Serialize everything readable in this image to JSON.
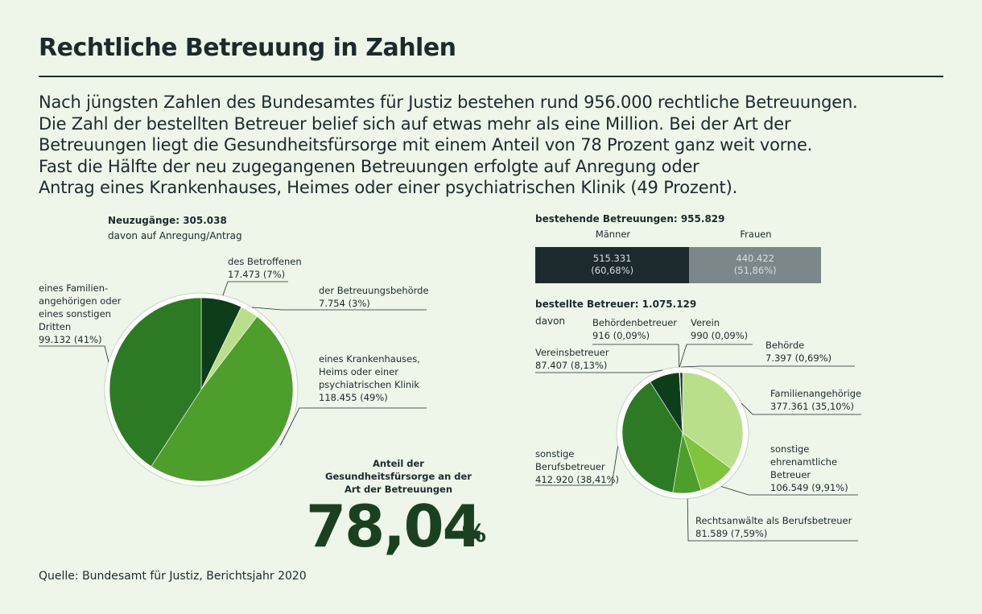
{
  "title": "Rechtliche Betreuung in Zahlen",
  "intro_lines": [
    "Nach jüngsten Zahlen des Bundesamtes für Justiz bestehen rund 956.000 rechtliche Betreuungen.",
    "Die Zahl der bestellten Betreuer belief sich auf etwas mehr als eine Million. Bei der Art der",
    "Betreuungen liegt die Gesundheitsfürsorge mit einem Anteil von 78 Prozent ganz weit vorne.",
    "Fast die Hälfte der neu zugegangenen Betreuungen erfolgte auf Anregung oder",
    "Antrag eines Krankenhauses, Heimes oder einer psychiatrischen Klinik (49 Prozent)."
  ],
  "highlight": {
    "label_lines": [
      "Anteil der",
      "Gesundheitsfürsorge an der",
      "Art der Betreuungen"
    ],
    "value": "78,04",
    "unit": "%"
  },
  "source": "Quelle: Bundesamt für Justiz, Berichtsjahr 2020",
  "colors": {
    "background": "#edf6e8",
    "text": "#1c2a2e",
    "darkest_green": "#0e3d1a",
    "dark_green": "#2d7a24",
    "mid_green": "#4e9e2c",
    "bright_green": "#7fc43c",
    "light_green": "#b9df8a",
    "bar_dark": "#1c2a2e",
    "bar_gray": "#7c8789"
  },
  "chart_data": [
    {
      "type": "pie",
      "title": "Neuzugänge: 305.038",
      "subtitle": "davon auf Anregung/Antrag",
      "slices": [
        {
          "label": "des Betroffenen",
          "value": 17473,
          "value_text": "17.473 (7%)",
          "color": "#0e3d1a"
        },
        {
          "label": "der Betreuungsbehörde",
          "value": 7754,
          "value_text": "7.754 (3%)",
          "color": "#b9df8a"
        },
        {
          "label": "eines Krankenhauses, Heims oder einer psychiatrischen Klinik",
          "value": 118455,
          "value_text": "118.455 (49%)",
          "color": "#4e9e2c"
        },
        {
          "label": "eines Familien- angehörigen oder eines sonstigen Dritten",
          "value": 99132,
          "value_text": "99.132 (41%)",
          "color": "#2d7a24"
        }
      ]
    },
    {
      "type": "bar",
      "title": "bestehende Betreuungen: 955.829",
      "categories": [
        "Männer",
        "Frauen"
      ],
      "values": [
        515331,
        440422
      ],
      "value_texts": [
        "515.331",
        "440.422"
      ],
      "percent_texts": [
        "(60,68%)",
        "(51,86%)"
      ],
      "colors": [
        "#1c2a2e",
        "#7c8789"
      ]
    },
    {
      "type": "pie",
      "title": "bestellte Betreuer: 1.075.129",
      "subtitle": "davon",
      "slices": [
        {
          "label": "Familienangehörige",
          "value": 377361,
          "value_text": "377.361 (35,10%)",
          "color": "#b9df8a"
        },
        {
          "label": "sonstige ehrenamtliche Betreuer",
          "value": 106549,
          "value_text": "106.549 (9,91%)",
          "color": "#7fc43c"
        },
        {
          "label": "Rechtsanwälte als Berufsbetreuer",
          "value": 81589,
          "value_text": "81.589 (7,59%)",
          "color": "#4e9e2c"
        },
        {
          "label": "sonstige Berufsbetreuer",
          "value": 412920,
          "value_text": "412.920 (38,41%)",
          "color": "#2d7a24"
        },
        {
          "label": "Vereinsbetreuer",
          "value": 87407,
          "value_text": "87.407 (8,13%)",
          "color": "#0e3d1a"
        },
        {
          "label": "Behördenbetreuer",
          "value": 916,
          "value_text": "916 (0,09%)",
          "color": "#b9df8a"
        },
        {
          "label": "Verein",
          "value": 990,
          "value_text": "990 (0,09%)",
          "color": "#4e9e2c"
        },
        {
          "label": "Behörde",
          "value": 7397,
          "value_text": "7.397 (0,69%)",
          "color": "#1c2a2e"
        }
      ]
    }
  ]
}
